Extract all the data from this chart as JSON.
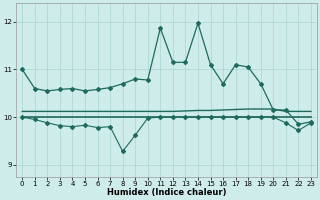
{
  "xlabel": "Humidex (Indice chaleur)",
  "xlim": [
    -0.5,
    23.5
  ],
  "ylim": [
    8.75,
    12.4
  ],
  "yticks": [
    9,
    10,
    11,
    12
  ],
  "xticks": [
    0,
    1,
    2,
    3,
    4,
    5,
    6,
    7,
    8,
    9,
    10,
    11,
    12,
    13,
    14,
    15,
    16,
    17,
    18,
    19,
    20,
    21,
    22,
    23
  ],
  "bg_color": "#ceecea",
  "grid_color": "#b0d8d4",
  "line_color": "#1e6b5e",
  "line_main": [
    11.0,
    10.6,
    10.55,
    10.58,
    10.6,
    10.55,
    10.58,
    10.62,
    10.7,
    10.8,
    10.78,
    11.87,
    11.15,
    11.15,
    11.97,
    11.1,
    10.7,
    11.1,
    11.05,
    10.7,
    10.15,
    10.15,
    9.85,
    9.9
  ],
  "line_upper": [
    10.12,
    10.12,
    10.12,
    10.12,
    10.12,
    10.12,
    10.12,
    10.12,
    10.12,
    10.12,
    10.12,
    10.12,
    10.12,
    10.13,
    10.14,
    10.14,
    10.15,
    10.16,
    10.17,
    10.17,
    10.17,
    10.12,
    10.12,
    10.12
  ],
  "line_lower": [
    10.0,
    10.0,
    10.0,
    10.0,
    10.0,
    10.0,
    10.0,
    10.0,
    10.0,
    10.0,
    10.0,
    10.0,
    10.0,
    10.0,
    10.0,
    10.0,
    10.0,
    10.0,
    10.0,
    10.0,
    10.0,
    10.0,
    10.0,
    10.0
  ],
  "line_jagged": [
    10.0,
    9.95,
    9.88,
    9.82,
    9.8,
    9.83,
    9.78,
    9.8,
    9.28,
    9.62,
    9.98,
    10.0,
    10.0,
    10.0,
    10.0,
    10.0,
    10.0,
    10.0,
    10.0,
    10.0,
    10.0,
    9.88,
    9.72,
    9.88
  ]
}
